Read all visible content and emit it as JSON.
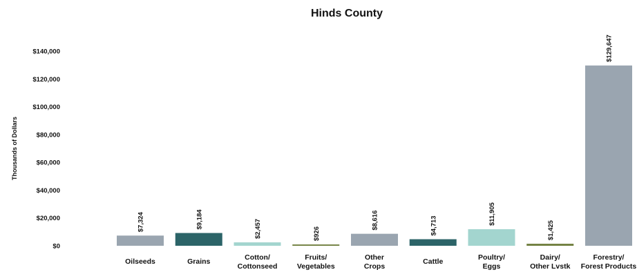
{
  "chart_data": {
    "type": "bar",
    "title": "Hinds County",
    "ylabel": "Thousands of Dollars",
    "xlabel": "",
    "ylim": [
      0,
      140000
    ],
    "yticks": [
      0,
      20000,
      40000,
      60000,
      80000,
      100000,
      120000,
      140000
    ],
    "ytick_labels": [
      "$0",
      "$20,000",
      "$40,000",
      "$60,000",
      "$80,000",
      "$100,000",
      "$120,000",
      "$140,000"
    ],
    "grid": false,
    "categories": [
      [
        "Oilseeds"
      ],
      [
        "Grains"
      ],
      [
        "Cotton/",
        "Cottonseed"
      ],
      [
        "Fruits/",
        "Vegetables"
      ],
      [
        "Other",
        "Crops"
      ],
      [
        "Cattle"
      ],
      [
        "Poultry/",
        "Eggs"
      ],
      [
        "Dairy/",
        "Other Lvstk"
      ],
      [
        "Forestry/",
        "Forest Products"
      ]
    ],
    "values": [
      7324,
      9184,
      2457,
      926,
      8616,
      4713,
      11905,
      1425,
      129647
    ],
    "data_labels": [
      "$7,324",
      "$9,184",
      "$2,457",
      "$926",
      "$8,616",
      "$4,713",
      "$11,905",
      "$1,425",
      "$129,647"
    ],
    "colors": [
      "#9aa5b0",
      "#2c6468",
      "#a3d5cf",
      "#6e7d3c",
      "#9aa5b0",
      "#2c6468",
      "#a3d5cf",
      "#6e7d3c",
      "#9aa5b0"
    ]
  }
}
